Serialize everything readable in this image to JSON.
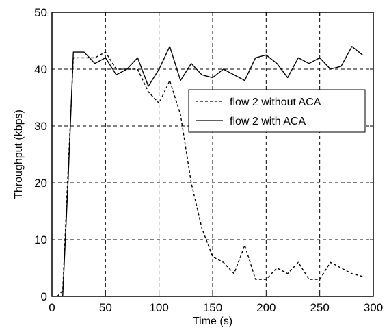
{
  "chart_data": {
    "type": "line",
    "xlabel": "Time (s)",
    "ylabel": "Throughput (kbps)",
    "xlim": [
      0,
      300
    ],
    "ylim": [
      0,
      50
    ],
    "xticks": [
      0,
      50,
      100,
      150,
      200,
      250,
      300
    ],
    "yticks": [
      0,
      10,
      20,
      30,
      40,
      50
    ],
    "grid": true,
    "legend_position": "right",
    "series": [
      {
        "name": "flow 2 without ACA",
        "style": "dashed",
        "color": "#000000",
        "x": [
          5,
          10,
          15,
          20,
          30,
          40,
          50,
          60,
          70,
          80,
          90,
          100,
          110,
          120,
          130,
          140,
          150,
          160,
          170,
          180,
          190,
          200,
          210,
          220,
          230,
          240,
          250,
          260,
          270,
          280,
          290
        ],
        "y": [
          0,
          1,
          22,
          42,
          42,
          42,
          43,
          40,
          40,
          40,
          36,
          34,
          38,
          32,
          20,
          12,
          7,
          6,
          4,
          9,
          3,
          3,
          5,
          4,
          6,
          3,
          3,
          6,
          5,
          4,
          3.5
        ]
      },
      {
        "name": "flow 2 with ACA",
        "style": "solid",
        "color": "#000000",
        "x": [
          10,
          15,
          20,
          30,
          40,
          50,
          60,
          70,
          80,
          90,
          100,
          110,
          120,
          130,
          140,
          150,
          160,
          170,
          180,
          190,
          200,
          210,
          220,
          230,
          240,
          250,
          260,
          270,
          280,
          290
        ],
        "y": [
          0,
          20,
          43,
          43,
          41,
          42,
          39,
          40,
          42,
          37,
          40,
          44,
          38,
          41,
          39,
          38.5,
          40,
          39,
          38,
          42,
          42.5,
          41,
          38.5,
          42,
          41,
          42,
          40,
          40.5,
          44,
          42.5
        ]
      }
    ]
  }
}
